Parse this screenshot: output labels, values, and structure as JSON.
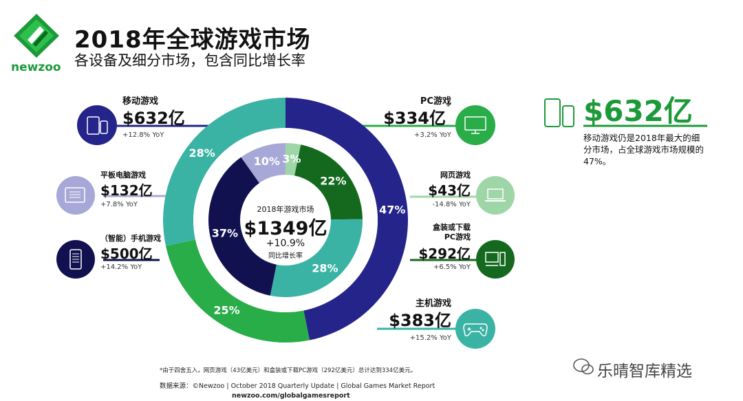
{
  "header": {
    "title": "2018年全球游戏市场",
    "subtitle": "各设备及细分市场，包含同比增长率",
    "brand": "newzoo"
  },
  "center": {
    "label": "2018年游戏市场",
    "total": "$1349亿",
    "growth": "+10.9%",
    "growth_label": "同比增长率"
  },
  "segments": {
    "mobile": {
      "title": "移动游戏",
      "value": "$632亿",
      "yoy": "+12.8% YoY",
      "share": "47%"
    },
    "tablet": {
      "title": "平板电脑游戏",
      "value": "$132亿",
      "yoy": "+7.8% YoY",
      "share": "10%"
    },
    "smartphone": {
      "title": "（智能）手机游戏",
      "value": "$500亿",
      "yoy": "+14.2% YoY",
      "share": "37%"
    },
    "pc": {
      "title": "PC游戏",
      "value": "$334亿",
      "note_mark": "*",
      "yoy": "+3.2% YoY",
      "share": "25%"
    },
    "browser": {
      "title": "网页游戏",
      "value": "$43亿",
      "yoy": "-14.8% YoY",
      "share": "3%"
    },
    "boxed": {
      "title_line1": "盒装或下载",
      "title_line2": "PC游戏",
      "value": "$292亿",
      "yoy": "+6.5% YoY",
      "share": "22%"
    },
    "console": {
      "title": "主机游戏",
      "value": "$383亿",
      "yoy": "+15.2% YoY",
      "share": "28%",
      "inner_share": "28%"
    }
  },
  "highlight": {
    "value": "$632亿",
    "text": "移动游戏仍是2018年最大的细分市场，占全球游戏市场规模的47%。"
  },
  "footer": {
    "note": "*由于四舍五入，网页游戏（43亿美元）和盒装或下载PC游戏（292亿美元）总计达到334亿美元。",
    "source": "数据来源：©Newzoo | October 2018 Quarterly Update | Global Games Market Report",
    "url": "newzoo.com/globalgamesreport"
  },
  "watermark": "乐晴智库精选",
  "colors": {
    "mobile": "#24248a",
    "smartphone": "#111150",
    "tablet": "#a8a8d8",
    "pc": "#28ad48",
    "browser": "#9fd6a8",
    "boxed": "#15691f",
    "console": "#3ab3a4",
    "brand": "#1c9a3a"
  },
  "chart_data": {
    "type": "pie",
    "title": "2018年全球游戏市场",
    "subtitle": "各设备及细分市场，包含同比增长率",
    "total": 1349,
    "unit": "亿美元",
    "outer_ring": [
      {
        "name": "移动游戏",
        "value": 632,
        "share": 47
      },
      {
        "name": "PC游戏",
        "value": 334,
        "share": 25
      },
      {
        "name": "主机游戏",
        "value": 383,
        "share": 28
      }
    ],
    "inner_ring": [
      {
        "name": "网页游戏",
        "value": 43,
        "share": 3
      },
      {
        "name": "盒装或下载PC游戏",
        "value": 292,
        "share": 22
      },
      {
        "name": "主机游戏",
        "value": 383,
        "share": 28
      },
      {
        "name": "（智能）手机游戏",
        "value": 500,
        "share": 37
      },
      {
        "name": "平板电脑游戏",
        "value": 132,
        "share": 10
      }
    ]
  }
}
